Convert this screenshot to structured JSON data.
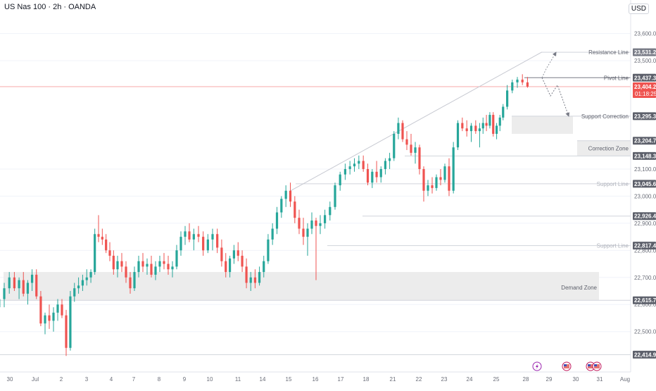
{
  "header": {
    "symbol_title": "US Nas 100 · 2h · OANDA",
    "currency": "USD"
  },
  "colors": {
    "up": "#26a69a",
    "down": "#ef5350",
    "zone_fill": "#ececec",
    "level_line": "#b2b5be",
    "current_line": "#f7a9a9",
    "label_bg": "#5d606b",
    "grid": "#f0f3fa"
  },
  "chart_data": {
    "type": "candlestick",
    "title": "US Nas 100 · 2h · OANDA",
    "currency": "USD",
    "ylim": [
      22351,
      23724
    ],
    "y_ticks": [
      {
        "value": 23600,
        "label": "23,600.0"
      },
      {
        "value": 23500,
        "label": "23,500.0"
      },
      {
        "value": 23100,
        "label": "23,100.0"
      },
      {
        "value": 23000,
        "label": "23,000.0"
      },
      {
        "value": 22900,
        "label": "22,900.0"
      },
      {
        "value": 22800,
        "label": "22,800.0"
      },
      {
        "value": 22700,
        "label": "22,700.0"
      },
      {
        "value": 22600,
        "label": "22,600.0"
      },
      {
        "value": 22500,
        "label": "22,500.0"
      }
    ],
    "x_ticks": [
      "30",
      "Jul",
      "2",
      "3",
      "4",
      "7",
      "8",
      "9",
      "10",
      "11",
      "14",
      "15",
      "16",
      "17",
      "18",
      "21",
      "22",
      "23",
      "24",
      "25",
      "28",
      "29",
      "30",
      "31",
      "Aug"
    ],
    "price_labels": [
      {
        "value": 23531.2,
        "label": "23,531.2",
        "style": "gray"
      },
      {
        "value": 23437.3,
        "label": "23,437.3",
        "style": "dark"
      },
      {
        "value": 23404.2,
        "label": "23,404.2",
        "style": "current"
      },
      {
        "value": 23295.3,
        "label": "23,295.3",
        "style": "dark"
      },
      {
        "value": 23204.7,
        "label": "23,204.7",
        "style": "dark"
      },
      {
        "value": 23148.3,
        "label": "23,148.3",
        "style": "dark"
      },
      {
        "value": 23045.6,
        "label": "23,045.6",
        "style": "dark"
      },
      {
        "value": 22926.4,
        "label": "22,926.4",
        "style": "dark"
      },
      {
        "value": 22817.4,
        "label": "22,817.4",
        "style": "dark"
      },
      {
        "value": 22615.7,
        "label": "22,615.7",
        "style": "dark"
      },
      {
        "value": 22414.9,
        "label": "22,414.9",
        "style": "dark"
      }
    ],
    "countdown": "01:18:25",
    "annotations": [
      {
        "text": "Resistance Line",
        "value": 23531.2
      },
      {
        "text": "Pivot Line",
        "value": 23437.3
      },
      {
        "text": "Support Correction",
        "value": 23295.3
      },
      {
        "text": "Correction Zone",
        "value": 23176.5
      },
      {
        "text": "Support Line",
        "value": 23045.6
      },
      {
        "text": "Support Line",
        "value": 22817.4
      },
      {
        "text": "Demand Zone",
        "value": 22663
      }
    ],
    "zones": [
      {
        "name": "Demand Zone",
        "from": 22615.7,
        "to": 22720
      },
      {
        "name": "Correction Zone",
        "from": 23148.3,
        "to": 23204.7
      },
      {
        "name": "Support Correction",
        "from": 23230,
        "to": 23295.3
      }
    ],
    "trendline": {
      "from": [
        15,
        23020
      ],
      "to": [
        28,
        23532
      ]
    },
    "candles": [
      {
        "t": "Jun 30",
        "o": 22400,
        "h": 22620,
        "l": 22395,
        "c": 22590
      },
      {
        "t": "Jun 30",
        "o": 22590,
        "h": 22650,
        "l": 22560,
        "c": 22620
      },
      {
        "t": "Jun 30",
        "o": 22620,
        "h": 22680,
        "l": 22590,
        "c": 22660
      },
      {
        "t": "Jun 30",
        "o": 22660,
        "h": 22720,
        "l": 22640,
        "c": 22700
      },
      {
        "t": "Jun 30",
        "o": 22700,
        "h": 22720,
        "l": 22650,
        "c": 22660
      },
      {
        "t": "Jul 1",
        "o": 22660,
        "h": 22700,
        "l": 22620,
        "c": 22690
      },
      {
        "t": "Jul 1",
        "o": 22690,
        "h": 22720,
        "l": 22630,
        "c": 22640
      },
      {
        "t": "Jul 1",
        "o": 22640,
        "h": 22690,
        "l": 22600,
        "c": 22680
      },
      {
        "t": "Jul 1",
        "o": 22680,
        "h": 22730,
        "l": 22650,
        "c": 22710
      },
      {
        "t": "Jul 1",
        "o": 22710,
        "h": 22730,
        "l": 22620,
        "c": 22630
      },
      {
        "t": "Jul 1",
        "o": 22630,
        "h": 22650,
        "l": 22520,
        "c": 22530
      },
      {
        "t": "Jul 2",
        "o": 22530,
        "h": 22570,
        "l": 22490,
        "c": 22560
      },
      {
        "t": "Jul 2",
        "o": 22560,
        "h": 22600,
        "l": 22510,
        "c": 22540
      },
      {
        "t": "Jul 2",
        "o": 22540,
        "h": 22590,
        "l": 22500,
        "c": 22570
      },
      {
        "t": "Jul 2",
        "o": 22570,
        "h": 22620,
        "l": 22540,
        "c": 22600
      },
      {
        "t": "Jul 2",
        "o": 22600,
        "h": 22620,
        "l": 22550,
        "c": 22560
      },
      {
        "t": "Jul 2",
        "o": 22560,
        "h": 22580,
        "l": 22410,
        "c": 22440
      },
      {
        "t": "Jul 3",
        "o": 22440,
        "h": 22650,
        "l": 22430,
        "c": 22630
      },
      {
        "t": "Jul 3",
        "o": 22630,
        "h": 22680,
        "l": 22610,
        "c": 22660
      },
      {
        "t": "Jul 3",
        "o": 22660,
        "h": 22700,
        "l": 22640,
        "c": 22670
      },
      {
        "t": "Jul 3",
        "o": 22670,
        "h": 22710,
        "l": 22650,
        "c": 22690
      },
      {
        "t": "Jul 3",
        "o": 22690,
        "h": 22730,
        "l": 22670,
        "c": 22700
      },
      {
        "t": "Jul 3",
        "o": 22700,
        "h": 22730,
        "l": 22680,
        "c": 22720
      },
      {
        "t": "Jul 4",
        "o": 22720,
        "h": 22880,
        "l": 22710,
        "c": 22860
      },
      {
        "t": "Jul 4",
        "o": 22860,
        "h": 22930,
        "l": 22830,
        "c": 22850
      },
      {
        "t": "Jul 4",
        "o": 22850,
        "h": 22880,
        "l": 22820,
        "c": 22840
      },
      {
        "t": "Jul 4",
        "o": 22840,
        "h": 22860,
        "l": 22790,
        "c": 22800
      },
      {
        "t": "Jul 4",
        "o": 22800,
        "h": 22830,
        "l": 22760,
        "c": 22780
      },
      {
        "t": "Jul 4",
        "o": 22780,
        "h": 22800,
        "l": 22710,
        "c": 22730
      },
      {
        "t": "Jul 7",
        "o": 22730,
        "h": 22780,
        "l": 22700,
        "c": 22760
      },
      {
        "t": "Jul 7",
        "o": 22760,
        "h": 22790,
        "l": 22720,
        "c": 22740
      },
      {
        "t": "Jul 7",
        "o": 22740,
        "h": 22760,
        "l": 22680,
        "c": 22700
      },
      {
        "t": "Jul 7",
        "o": 22700,
        "h": 22720,
        "l": 22640,
        "c": 22660
      },
      {
        "t": "Jul 7",
        "o": 22660,
        "h": 22740,
        "l": 22650,
        "c": 22720
      },
      {
        "t": "Jul 7",
        "o": 22720,
        "h": 22780,
        "l": 22700,
        "c": 22760
      },
      {
        "t": "Jul 8",
        "o": 22760,
        "h": 22790,
        "l": 22720,
        "c": 22740
      },
      {
        "t": "Jul 8",
        "o": 22740,
        "h": 22770,
        "l": 22710,
        "c": 22750
      },
      {
        "t": "Jul 8",
        "o": 22750,
        "h": 22780,
        "l": 22700,
        "c": 22710
      },
      {
        "t": "Jul 8",
        "o": 22710,
        "h": 22760,
        "l": 22690,
        "c": 22740
      },
      {
        "t": "Jul 8",
        "o": 22740,
        "h": 22780,
        "l": 22720,
        "c": 22760
      },
      {
        "t": "Jul 8",
        "o": 22760,
        "h": 22790,
        "l": 22730,
        "c": 22750
      },
      {
        "t": "Jul 9",
        "o": 22750,
        "h": 22780,
        "l": 22710,
        "c": 22730
      },
      {
        "t": "Jul 9",
        "o": 22730,
        "h": 22760,
        "l": 22700,
        "c": 22740
      },
      {
        "t": "Jul 9",
        "o": 22740,
        "h": 22820,
        "l": 22730,
        "c": 22800
      },
      {
        "t": "Jul 9",
        "o": 22800,
        "h": 22870,
        "l": 22780,
        "c": 22850
      },
      {
        "t": "Jul 9",
        "o": 22850,
        "h": 22890,
        "l": 22820,
        "c": 22870
      },
      {
        "t": "Jul 9",
        "o": 22870,
        "h": 22900,
        "l": 22830,
        "c": 22840
      },
      {
        "t": "Jul 10",
        "o": 22840,
        "h": 22880,
        "l": 22800,
        "c": 22860
      },
      {
        "t": "Jul 10",
        "o": 22860,
        "h": 22890,
        "l": 22830,
        "c": 22850
      },
      {
        "t": "Jul 10",
        "o": 22850,
        "h": 22870,
        "l": 22780,
        "c": 22800
      },
      {
        "t": "Jul 10",
        "o": 22800,
        "h": 22860,
        "l": 22790,
        "c": 22840
      },
      {
        "t": "Jul 10",
        "o": 22840,
        "h": 22880,
        "l": 22800,
        "c": 22860
      },
      {
        "t": "Jul 10",
        "o": 22860,
        "h": 22880,
        "l": 22790,
        "c": 22810
      },
      {
        "t": "Jul 11",
        "o": 22810,
        "h": 22840,
        "l": 22740,
        "c": 22760
      },
      {
        "t": "Jul 11",
        "o": 22760,
        "h": 22790,
        "l": 22700,
        "c": 22720
      },
      {
        "t": "Jul 11",
        "o": 22720,
        "h": 22780,
        "l": 22700,
        "c": 22770
      },
      {
        "t": "Jul 11",
        "o": 22770,
        "h": 22820,
        "l": 22750,
        "c": 22800
      },
      {
        "t": "Jul 11",
        "o": 22800,
        "h": 22830,
        "l": 22760,
        "c": 22780
      },
      {
        "t": "Jul 11",
        "o": 22780,
        "h": 22800,
        "l": 22720,
        "c": 22740
      },
      {
        "t": "Jul 14",
        "o": 22740,
        "h": 22770,
        "l": 22660,
        "c": 22680
      },
      {
        "t": "Jul 14",
        "o": 22680,
        "h": 22720,
        "l": 22650,
        "c": 22700
      },
      {
        "t": "Jul 14",
        "o": 22700,
        "h": 22730,
        "l": 22660,
        "c": 22680
      },
      {
        "t": "Jul 14",
        "o": 22680,
        "h": 22740,
        "l": 22670,
        "c": 22720
      },
      {
        "t": "Jul 14",
        "o": 22720,
        "h": 22780,
        "l": 22700,
        "c": 22760
      },
      {
        "t": "Jul 14",
        "o": 22760,
        "h": 22860,
        "l": 22750,
        "c": 22840
      },
      {
        "t": "Jul 15",
        "o": 22840,
        "h": 22900,
        "l": 22820,
        "c": 22880
      },
      {
        "t": "Jul 15",
        "o": 22880,
        "h": 22960,
        "l": 22860,
        "c": 22940
      },
      {
        "t": "Jul 15",
        "o": 22940,
        "h": 23000,
        "l": 22920,
        "c": 22990
      },
      {
        "t": "Jul 15",
        "o": 22990,
        "h": 23040,
        "l": 22960,
        "c": 23020
      },
      {
        "t": "Jul 15",
        "o": 23020,
        "h": 23050,
        "l": 22960,
        "c": 22980
      },
      {
        "t": "Jul 15",
        "o": 22980,
        "h": 23000,
        "l": 22900,
        "c": 22920
      },
      {
        "t": "Jul 16",
        "o": 22920,
        "h": 22950,
        "l": 22860,
        "c": 22880
      },
      {
        "t": "Jul 16",
        "o": 22880,
        "h": 22920,
        "l": 22820,
        "c": 22850
      },
      {
        "t": "Jul 16",
        "o": 22850,
        "h": 22900,
        "l": 22780,
        "c": 22880
      },
      {
        "t": "Jul 16",
        "o": 22880,
        "h": 22940,
        "l": 22860,
        "c": 22910
      },
      {
        "t": "Jul 16",
        "o": 22910,
        "h": 22920,
        "l": 22690,
        "c": 22890
      },
      {
        "t": "Jul 16",
        "o": 22890,
        "h": 22930,
        "l": 22860,
        "c": 22900
      },
      {
        "t": "Jul 17",
        "o": 22900,
        "h": 22950,
        "l": 22880,
        "c": 22930
      },
      {
        "t": "Jul 17",
        "o": 22930,
        "h": 22980,
        "l": 22910,
        "c": 22960
      },
      {
        "t": "Jul 17",
        "o": 22960,
        "h": 23050,
        "l": 22950,
        "c": 23040
      },
      {
        "t": "Jul 17",
        "o": 23040,
        "h": 23090,
        "l": 23020,
        "c": 23080
      },
      {
        "t": "Jul 17",
        "o": 23080,
        "h": 23120,
        "l": 23060,
        "c": 23100
      },
      {
        "t": "Jul 18",
        "o": 23100,
        "h": 23130,
        "l": 23080,
        "c": 23110
      },
      {
        "t": "Jul 18",
        "o": 23110,
        "h": 23140,
        "l": 23090,
        "c": 23120
      },
      {
        "t": "Jul 18",
        "o": 23120,
        "h": 23150,
        "l": 23100,
        "c": 23130
      },
      {
        "t": "Jul 18",
        "o": 23130,
        "h": 23150,
        "l": 23090,
        "c": 23100
      },
      {
        "t": "Jul 18",
        "o": 23100,
        "h": 23120,
        "l": 23040,
        "c": 23050
      },
      {
        "t": "Jul 18",
        "o": 23050,
        "h": 23100,
        "l": 23030,
        "c": 23090
      },
      {
        "t": "Jul 21",
        "o": 23090,
        "h": 23130,
        "l": 23050,
        "c": 23070
      },
      {
        "t": "Jul 21",
        "o": 23070,
        "h": 23110,
        "l": 23050,
        "c": 23100
      },
      {
        "t": "Jul 21",
        "o": 23100,
        "h": 23140,
        "l": 23080,
        "c": 23130
      },
      {
        "t": "Jul 21",
        "o": 23130,
        "h": 23160,
        "l": 23100,
        "c": 23140
      },
      {
        "t": "Jul 21",
        "o": 23140,
        "h": 23240,
        "l": 23130,
        "c": 23230
      },
      {
        "t": "Jul 21",
        "o": 23230,
        "h": 23290,
        "l": 23210,
        "c": 23270
      },
      {
        "t": "Jul 22",
        "o": 23270,
        "h": 23280,
        "l": 23200,
        "c": 23210
      },
      {
        "t": "Jul 22",
        "o": 23210,
        "h": 23240,
        "l": 23170,
        "c": 23190
      },
      {
        "t": "Jul 22",
        "o": 23190,
        "h": 23230,
        "l": 23150,
        "c": 23160
      },
      {
        "t": "Jul 22",
        "o": 23160,
        "h": 23200,
        "l": 23120,
        "c": 23180
      },
      {
        "t": "Jul 22",
        "o": 23180,
        "h": 23190,
        "l": 23080,
        "c": 23100
      },
      {
        "t": "Jul 22",
        "o": 23100,
        "h": 23110,
        "l": 22980,
        "c": 23020
      },
      {
        "t": "Jul 23",
        "o": 23020,
        "h": 23060,
        "l": 23000,
        "c": 23040
      },
      {
        "t": "Jul 23",
        "o": 23040,
        "h": 23070,
        "l": 23010,
        "c": 23030
      },
      {
        "t": "Jul 23",
        "o": 23030,
        "h": 23080,
        "l": 23020,
        "c": 23070
      },
      {
        "t": "Jul 23",
        "o": 23070,
        "h": 23100,
        "l": 23040,
        "c": 23060
      },
      {
        "t": "Jul 23",
        "o": 23060,
        "h": 23120,
        "l": 23050,
        "c": 23110
      },
      {
        "t": "Jul 23",
        "o": 23110,
        "h": 23140,
        "l": 23000,
        "c": 23020
      },
      {
        "t": "Jul 24",
        "o": 23020,
        "h": 23200,
        "l": 23010,
        "c": 23180
      },
      {
        "t": "Jul 24",
        "o": 23180,
        "h": 23280,
        "l": 23170,
        "c": 23270
      },
      {
        "t": "Jul 24",
        "o": 23270,
        "h": 23290,
        "l": 23240,
        "c": 23250
      },
      {
        "t": "Jul 24",
        "o": 23250,
        "h": 23280,
        "l": 23220,
        "c": 23240
      },
      {
        "t": "Jul 24",
        "o": 23240,
        "h": 23270,
        "l": 23200,
        "c": 23260
      },
      {
        "t": "Jul 24",
        "o": 23260,
        "h": 23280,
        "l": 23230,
        "c": 23240
      },
      {
        "t": "Jul 25",
        "o": 23240,
        "h": 23270,
        "l": 23180,
        "c": 23250
      },
      {
        "t": "Jul 25",
        "o": 23250,
        "h": 23290,
        "l": 23230,
        "c": 23270
      },
      {
        "t": "Jul 25",
        "o": 23270,
        "h": 23300,
        "l": 23240,
        "c": 23260
      },
      {
        "t": "Jul 25",
        "o": 23260,
        "h": 23310,
        "l": 23250,
        "c": 23300
      },
      {
        "t": "Jul 25",
        "o": 23300,
        "h": 23310,
        "l": 23220,
        "c": 23230
      },
      {
        "t": "Jul 25",
        "o": 23230,
        "h": 23270,
        "l": 23210,
        "c": 23260
      },
      {
        "t": "Jul 27",
        "o": 23260,
        "h": 23300,
        "l": 23240,
        "c": 23290
      },
      {
        "t": "Jul 27",
        "o": 23290,
        "h": 23340,
        "l": 23280,
        "c": 23330
      },
      {
        "t": "Jul 28",
        "o": 23330,
        "h": 23410,
        "l": 23320,
        "c": 23390
      },
      {
        "t": "Jul 28",
        "o": 23390,
        "h": 23430,
        "l": 23380,
        "c": 23420
      },
      {
        "t": "Jul 28",
        "o": 23420,
        "h": 23440,
        "l": 23400,
        "c": 23430
      },
      {
        "t": "Jul 28",
        "o": 23430,
        "h": 23450,
        "l": 23410,
        "c": 23420
      },
      {
        "t": "Jul 28",
        "o": 23420,
        "h": 23440,
        "l": 23400,
        "c": 23404.2
      }
    ],
    "projection": {
      "bullish": [
        [
          23437,
          23531
        ]
      ],
      "bearish": [
        [
          23437,
          23370
        ],
        [
          23410,
          23295
        ]
      ]
    },
    "events": [
      {
        "kind": "earnings-flash",
        "date": "Jul 28"
      },
      {
        "kind": "us-news",
        "date": "Jul 29"
      },
      {
        "kind": "us-news",
        "date": "Jul 31"
      },
      {
        "kind": "us-news",
        "date": "Jul 31"
      }
    ]
  }
}
